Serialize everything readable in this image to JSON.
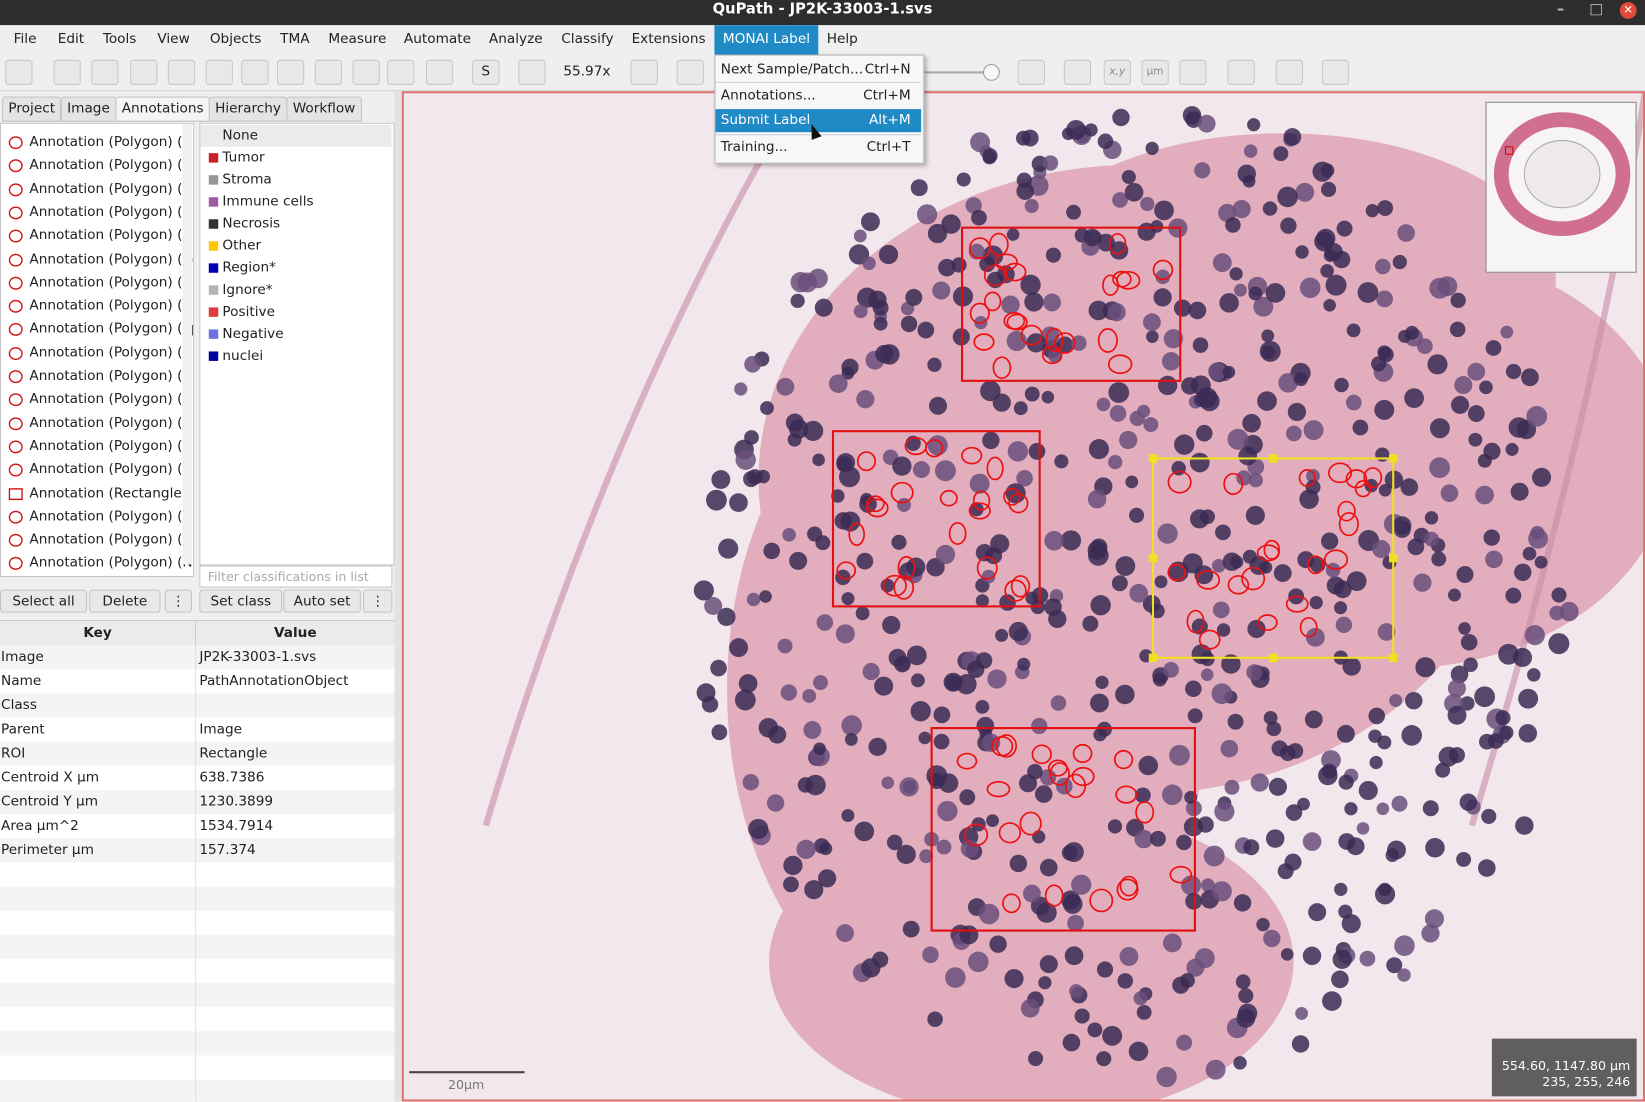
{
  "window": {
    "title": "QuPath - JP2K-33003-1.svs"
  },
  "menu": [
    "File",
    "Edit",
    "Tools",
    "View",
    "Objects",
    "TMA",
    "Measure",
    "Automate",
    "Analyze",
    "Classify",
    "Extensions",
    "MONAI Label",
    "Help"
  ],
  "toolbar": {
    "zoom": "55.97x",
    "s": "S",
    "xy": "x,y",
    "um": "µm"
  },
  "tabs": [
    "Project",
    "Image",
    "Annotations",
    "Hierarchy",
    "Workflow"
  ],
  "annotations": [
    "Annotation (Polygon) (I",
    "Annotation (Polygon) (I",
    "Annotation (Polygon) (I",
    "Annotation (Polygon) (E",
    "Annotation (Polygon) (I",
    "Annotation (Polygon) (Cc",
    "Annotation (Polygon) (I",
    "Annotation (Polygon) (I",
    "Annotation (Polygon) (Ep",
    "Annotation (Polygon) (Ir",
    "Annotation (Polygon) (I",
    "Annotation (Polygon) (I",
    "Annotation (Polygon) (I",
    "Annotation (Polygon) (E",
    "Annotation (Polygon) (I",
    "Annotation (Rectangle)",
    "Annotation (Polygon) (I",
    "Annotation (Polygon) (I",
    "Annotation (Polygon) (Ni"
  ],
  "classes": [
    {
      "name": "None"
    },
    {
      "name": "Tumor",
      "color": "#c8202a"
    },
    {
      "name": "Stroma",
      "color": "#969696"
    },
    {
      "name": "Immune cells",
      "color": "#a05aa0"
    },
    {
      "name": "Necrosis",
      "color": "#323232"
    },
    {
      "name": "Other",
      "color": "#ffc800"
    },
    {
      "name": "Region*",
      "color": "#0000b4"
    },
    {
      "name": "Ignore*",
      "color": "#b4b4b4"
    },
    {
      "name": "Positive",
      "color": "#e03c3c"
    },
    {
      "name": "Negative",
      "color": "#7070e0"
    },
    {
      "name": "nuclei",
      "color": "#0000a0"
    }
  ],
  "filter_placeholder": "Filter classifications in list",
  "buttons": {
    "left": [
      "Select all",
      "Delete"
    ],
    "right": [
      "Set class",
      "Auto set"
    ]
  },
  "table": {
    "headers": [
      "Key",
      "Value"
    ],
    "rows": [
      [
        "Image",
        "JP2K-33003-1.svs"
      ],
      [
        "Name",
        "PathAnnotationObject"
      ],
      [
        "Class"
      ],
      [
        "Parent",
        "Image"
      ],
      [
        "ROI",
        "Rectangle"
      ],
      [
        "Centroid X µm",
        "638.7386"
      ],
      [
        "Centroid Y µm",
        "1230.3899"
      ],
      [
        "Area µm^2",
        "1534.7914"
      ],
      [
        "Perimeter µm",
        "157.374"
      ]
    ]
  },
  "dropdown": [
    {
      "label": "Next Sample/Patch...",
      "shortcut": "Ctrl+N"
    },
    {
      "label": "Annotations...",
      "shortcut": "Ctrl+M"
    },
    {
      "label": "Submit Label",
      "shortcut": "Alt+M"
    },
    {
      "label": "Training...",
      "shortcut": "Ctrl+T"
    }
  ],
  "viewer": {
    "scale_bar": "20µm",
    "cursor_position": "554.60, 1147.80 µm",
    "pixel_value": "235, 255, 246"
  }
}
